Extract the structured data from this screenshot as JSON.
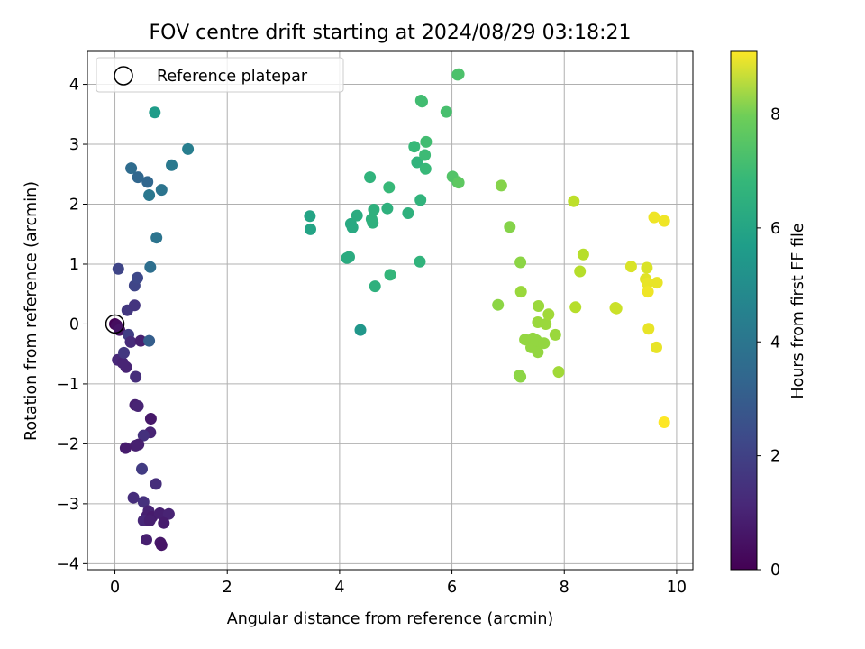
{
  "chart_data": {
    "type": "scatter",
    "title": "FOV centre drift starting at 2024/08/29 03:18:21",
    "xlabel": "Angular distance from reference (arcmin)",
    "ylabel": "Rotation from reference (arcmin)",
    "xlim": [
      -0.49,
      10.29
    ],
    "ylim": [
      -4.1,
      4.55
    ],
    "xticks": [
      0,
      2,
      4,
      6,
      8,
      10
    ],
    "yticks": [
      -4,
      -3,
      -2,
      -1,
      0,
      1,
      2,
      3,
      4
    ],
    "grid": true,
    "legend": {
      "position": "top-left",
      "entries": [
        "Reference platepar"
      ]
    },
    "reference_point": {
      "x": 0,
      "y": 0,
      "label": "Reference platepar"
    },
    "colorbar": {
      "label": "Hours from first FF file",
      "colormap": "viridis",
      "range": [
        0,
        9.1
      ],
      "ticks": [
        0,
        2,
        4,
        6,
        8
      ]
    },
    "points": [
      {
        "x": 0.0,
        "y": 0.0,
        "c": 0.0
      },
      {
        "x": 0.03,
        "y": -0.02,
        "c": 0.3
      },
      {
        "x": 0.08,
        "y": -0.1,
        "c": 0.5
      },
      {
        "x": 0.05,
        "y": -0.6,
        "c": 1.0
      },
      {
        "x": 0.14,
        "y": -0.65,
        "c": 0.9
      },
      {
        "x": 0.2,
        "y": -0.72,
        "c": 0.9
      },
      {
        "x": 0.16,
        "y": -0.48,
        "c": 1.5
      },
      {
        "x": 0.24,
        "y": -0.18,
        "c": 1.7
      },
      {
        "x": 0.28,
        "y": -0.3,
        "c": 1.1
      },
      {
        "x": 0.46,
        "y": -0.28,
        "c": 0.8
      },
      {
        "x": 0.61,
        "y": -0.28,
        "c": 2.7
      },
      {
        "x": 0.37,
        "y": -0.88,
        "c": 1.2
      },
      {
        "x": 0.22,
        "y": 0.23,
        "c": 1.5
      },
      {
        "x": 0.35,
        "y": 0.31,
        "c": 1.4
      },
      {
        "x": 0.35,
        "y": 0.64,
        "c": 1.9
      },
      {
        "x": 0.4,
        "y": 0.77,
        "c": 2.0
      },
      {
        "x": 0.06,
        "y": 0.92,
        "c": 1.9
      },
      {
        "x": 0.63,
        "y": 0.95,
        "c": 3.3
      },
      {
        "x": 0.74,
        "y": 1.44,
        "c": 3.5
      },
      {
        "x": 0.61,
        "y": 2.15,
        "c": 3.6
      },
      {
        "x": 0.41,
        "y": 2.45,
        "c": 3.0
      },
      {
        "x": 0.58,
        "y": 2.37,
        "c": 3.0
      },
      {
        "x": 0.29,
        "y": 2.6,
        "c": 3.2
      },
      {
        "x": 0.83,
        "y": 2.24,
        "c": 3.5
      },
      {
        "x": 1.01,
        "y": 2.65,
        "c": 3.7
      },
      {
        "x": 1.3,
        "y": 2.92,
        "c": 3.9
      },
      {
        "x": 0.71,
        "y": 3.53,
        "c": 5.0
      },
      {
        "x": 0.36,
        "y": -1.35,
        "c": 0.8
      },
      {
        "x": 0.41,
        "y": -1.37,
        "c": 0.9
      },
      {
        "x": 0.64,
        "y": -1.58,
        "c": 0.6
      },
      {
        "x": 0.63,
        "y": -1.81,
        "c": 0.9
      },
      {
        "x": 0.51,
        "y": -1.86,
        "c": 1.3
      },
      {
        "x": 0.42,
        "y": -2.01,
        "c": 0.8
      },
      {
        "x": 0.37,
        "y": -2.03,
        "c": 0.8
      },
      {
        "x": 0.19,
        "y": -2.07,
        "c": 0.7
      },
      {
        "x": 0.48,
        "y": -2.42,
        "c": 1.6
      },
      {
        "x": 0.73,
        "y": -2.67,
        "c": 1.2
      },
      {
        "x": 0.33,
        "y": -2.9,
        "c": 1.2
      },
      {
        "x": 0.51,
        "y": -2.97,
        "c": 1.3
      },
      {
        "x": 0.6,
        "y": -3.12,
        "c": 0.9
      },
      {
        "x": 0.57,
        "y": -3.2,
        "c": 0.8
      },
      {
        "x": 0.66,
        "y": -3.22,
        "c": 0.7
      },
      {
        "x": 0.8,
        "y": -3.16,
        "c": 0.8
      },
      {
        "x": 0.96,
        "y": -3.17,
        "c": 0.9
      },
      {
        "x": 0.87,
        "y": -3.32,
        "c": 0.7
      },
      {
        "x": 0.51,
        "y": -3.28,
        "c": 1.0
      },
      {
        "x": 0.62,
        "y": -3.28,
        "c": 0.8
      },
      {
        "x": 0.56,
        "y": -3.6,
        "c": 0.8
      },
      {
        "x": 0.81,
        "y": -3.65,
        "c": 0.6
      },
      {
        "x": 0.83,
        "y": -3.69,
        "c": 0.5
      },
      {
        "x": 3.47,
        "y": 1.8,
        "c": 5.3
      },
      {
        "x": 3.48,
        "y": 1.58,
        "c": 5.3
      },
      {
        "x": 4.13,
        "y": 1.1,
        "c": 5.6
      },
      {
        "x": 4.17,
        "y": 1.12,
        "c": 5.6
      },
      {
        "x": 4.2,
        "y": 1.67,
        "c": 5.5
      },
      {
        "x": 4.23,
        "y": 1.61,
        "c": 5.5
      },
      {
        "x": 4.31,
        "y": 1.81,
        "c": 5.6
      },
      {
        "x": 4.37,
        "y": -0.1,
        "c": 4.8
      },
      {
        "x": 4.54,
        "y": 2.45,
        "c": 5.9
      },
      {
        "x": 4.57,
        "y": 1.75,
        "c": 5.8
      },
      {
        "x": 4.59,
        "y": 1.69,
        "c": 5.8
      },
      {
        "x": 4.61,
        "y": 1.91,
        "c": 5.8
      },
      {
        "x": 4.63,
        "y": 0.63,
        "c": 5.8
      },
      {
        "x": 4.85,
        "y": 1.93,
        "c": 5.8
      },
      {
        "x": 4.88,
        "y": 2.28,
        "c": 6.1
      },
      {
        "x": 4.9,
        "y": 0.82,
        "c": 6.0
      },
      {
        "x": 5.22,
        "y": 1.85,
        "c": 5.8
      },
      {
        "x": 5.33,
        "y": 2.96,
        "c": 6.1
      },
      {
        "x": 5.38,
        "y": 2.7,
        "c": 5.9
      },
      {
        "x": 5.44,
        "y": 2.07,
        "c": 5.9
      },
      {
        "x": 5.43,
        "y": 1.04,
        "c": 5.9
      },
      {
        "x": 5.45,
        "y": 3.73,
        "c": 6.3
      },
      {
        "x": 5.47,
        "y": 3.71,
        "c": 6.3
      },
      {
        "x": 5.52,
        "y": 2.82,
        "c": 6.2
      },
      {
        "x": 5.53,
        "y": 2.59,
        "c": 6.1
      },
      {
        "x": 5.54,
        "y": 3.04,
        "c": 6.3
      },
      {
        "x": 5.9,
        "y": 3.54,
        "c": 6.4
      },
      {
        "x": 6.01,
        "y": 2.46,
        "c": 6.6
      },
      {
        "x": 6.1,
        "y": 2.37,
        "c": 6.6
      },
      {
        "x": 6.12,
        "y": 2.36,
        "c": 6.8
      },
      {
        "x": 6.1,
        "y": 4.16,
        "c": 6.5
      },
      {
        "x": 6.12,
        "y": 4.17,
        "c": 6.5
      },
      {
        "x": 6.88,
        "y": 2.31,
        "c": 7.4
      },
      {
        "x": 6.82,
        "y": 0.32,
        "c": 7.5
      },
      {
        "x": 7.03,
        "y": 1.62,
        "c": 7.4
      },
      {
        "x": 7.22,
        "y": 1.03,
        "c": 7.5
      },
      {
        "x": 7.2,
        "y": -0.86,
        "c": 7.5
      },
      {
        "x": 7.22,
        "y": -0.88,
        "c": 7.5
      },
      {
        "x": 7.23,
        "y": 0.54,
        "c": 7.7
      },
      {
        "x": 7.3,
        "y": -0.26,
        "c": 7.6
      },
      {
        "x": 7.41,
        "y": -0.39,
        "c": 7.6
      },
      {
        "x": 7.44,
        "y": -0.24,
        "c": 7.6
      },
      {
        "x": 7.47,
        "y": -0.35,
        "c": 7.6
      },
      {
        "x": 7.5,
        "y": -0.27,
        "c": 7.6
      },
      {
        "x": 7.53,
        "y": -0.47,
        "c": 7.6
      },
      {
        "x": 7.54,
        "y": 0.3,
        "c": 7.7
      },
      {
        "x": 7.53,
        "y": 0.03,
        "c": 7.7
      },
      {
        "x": 7.64,
        "y": -0.32,
        "c": 7.6
      },
      {
        "x": 7.67,
        "y": 0.0,
        "c": 7.7
      },
      {
        "x": 7.72,
        "y": 0.16,
        "c": 7.8
      },
      {
        "x": 7.84,
        "y": -0.18,
        "c": 7.7
      },
      {
        "x": 7.9,
        "y": -0.8,
        "c": 7.8
      },
      {
        "x": 8.17,
        "y": 2.05,
        "c": 8.2
      },
      {
        "x": 8.2,
        "y": 0.28,
        "c": 8.1
      },
      {
        "x": 8.28,
        "y": 0.88,
        "c": 8.1
      },
      {
        "x": 8.34,
        "y": 1.16,
        "c": 8.1
      },
      {
        "x": 8.91,
        "y": 0.27,
        "c": 8.4
      },
      {
        "x": 8.93,
        "y": 0.26,
        "c": 8.4
      },
      {
        "x": 9.19,
        "y": 0.96,
        "c": 8.6
      },
      {
        "x": 9.45,
        "y": 0.75,
        "c": 8.7
      },
      {
        "x": 9.47,
        "y": 0.94,
        "c": 8.6
      },
      {
        "x": 9.48,
        "y": 0.68,
        "c": 8.8
      },
      {
        "x": 9.49,
        "y": 0.54,
        "c": 8.9
      },
      {
        "x": 9.5,
        "y": -0.08,
        "c": 8.8
      },
      {
        "x": 9.6,
        "y": 1.78,
        "c": 8.9
      },
      {
        "x": 9.64,
        "y": -0.39,
        "c": 8.8
      },
      {
        "x": 9.65,
        "y": 0.69,
        "c": 8.8
      },
      {
        "x": 9.78,
        "y": 1.72,
        "c": 8.9
      },
      {
        "x": 9.78,
        "y": -1.64,
        "c": 9.1
      }
    ]
  }
}
